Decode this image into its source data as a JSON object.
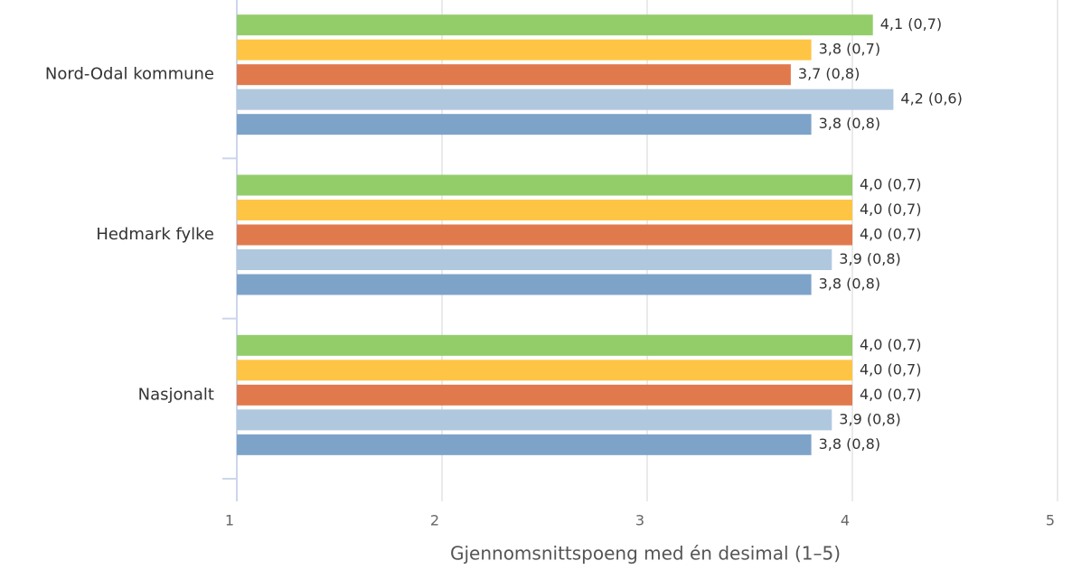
{
  "chart_data": {
    "type": "barh",
    "categories": [
      "Nord-Odal kommune",
      "Hedmark fylke",
      "Nasjonalt"
    ],
    "series": [
      {
        "color": "#93cd6a",
        "values": [
          4.1,
          4.0,
          4.0
        ],
        "value_labels": [
          "4,1 (0,7)",
          "4,0 (0,7)",
          "4,0 (0,7)"
        ]
      },
      {
        "color": "#fec545",
        "values": [
          3.8,
          4.0,
          4.0
        ],
        "value_labels": [
          "3,8 (0,7)",
          "4,0 (0,7)",
          "4,0 (0,7)"
        ]
      },
      {
        "color": "#e07a4d",
        "values": [
          3.7,
          4.0,
          4.0
        ],
        "value_labels": [
          "3,7 (0,8)",
          "4,0 (0,7)",
          "4,0 (0,7)"
        ]
      },
      {
        "color": "#b0c8de",
        "values": [
          4.2,
          3.9,
          3.9
        ],
        "value_labels": [
          "4,2 (0,6)",
          "3,9 (0,8)",
          "3,9 (0,8)"
        ]
      },
      {
        "color": "#7ea3c9",
        "values": [
          3.8,
          3.8,
          3.8
        ],
        "value_labels": [
          "3,8 (0,8)",
          "3,8 (0,8)",
          "3,8 (0,8)"
        ]
      }
    ],
    "xlabel": "Gjennomsnittspoeng med én desimal (1–5)",
    "xlim": [
      1,
      5
    ],
    "xticks": [
      1,
      2,
      3,
      4,
      5
    ],
    "grid": true
  }
}
